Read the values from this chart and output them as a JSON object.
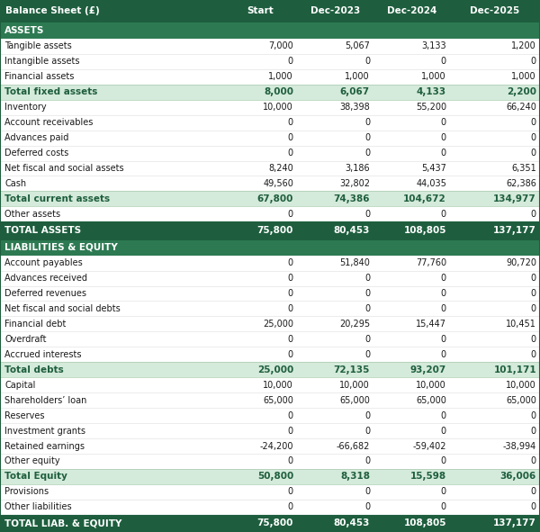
{
  "columns": [
    "Balance Sheet (£)",
    "Start",
    "Dec-2023",
    "Dec-2024",
    "Dec-2025"
  ],
  "header_bg": "#1e5e3e",
  "header_fg": "#ffffff",
  "section_bg": "#2d7a52",
  "section_fg": "#ffffff",
  "subtotal_bg": "#d4eada",
  "subtotal_fg": "#1e5e3e",
  "total_bg": "#1e5e3e",
  "total_fg": "#ffffff",
  "normal_bg": "#ffffff",
  "normal_fg": "#1a1a1a",
  "border_color": "#1e5e3e",
  "divider_color": "#cccccc",
  "rows": [
    {
      "label": "ASSETS",
      "values": [
        "",
        "",
        "",
        ""
      ],
      "type": "section"
    },
    {
      "label": "Tangible assets",
      "values": [
        "7,000",
        "5,067",
        "3,133",
        "1,200"
      ],
      "type": "normal"
    },
    {
      "label": "Intangible assets",
      "values": [
        "0",
        "0",
        "0",
        "0"
      ],
      "type": "normal"
    },
    {
      "label": "Financial assets",
      "values": [
        "1,000",
        "1,000",
        "1,000",
        "1,000"
      ],
      "type": "normal"
    },
    {
      "label": "Total fixed assets",
      "values": [
        "8,000",
        "6,067",
        "4,133",
        "2,200"
      ],
      "type": "subtotal"
    },
    {
      "label": "Inventory",
      "values": [
        "10,000",
        "38,398",
        "55,200",
        "66,240"
      ],
      "type": "normal"
    },
    {
      "label": "Account receivables",
      "values": [
        "0",
        "0",
        "0",
        "0"
      ],
      "type": "normal"
    },
    {
      "label": "Advances paid",
      "values": [
        "0",
        "0",
        "0",
        "0"
      ],
      "type": "normal"
    },
    {
      "label": "Deferred costs",
      "values": [
        "0",
        "0",
        "0",
        "0"
      ],
      "type": "normal"
    },
    {
      "label": "Net fiscal and social assets",
      "values": [
        "8,240",
        "3,186",
        "5,437",
        "6,351"
      ],
      "type": "normal"
    },
    {
      "label": "Cash",
      "values": [
        "49,560",
        "32,802",
        "44,035",
        "62,386"
      ],
      "type": "normal"
    },
    {
      "label": "Total current assets",
      "values": [
        "67,800",
        "74,386",
        "104,672",
        "134,977"
      ],
      "type": "subtotal"
    },
    {
      "label": "Other assets",
      "values": [
        "0",
        "0",
        "0",
        "0"
      ],
      "type": "normal"
    },
    {
      "label": "TOTAL ASSETS",
      "values": [
        "75,800",
        "80,453",
        "108,805",
        "137,177"
      ],
      "type": "total"
    },
    {
      "label": "LIABILITIES & EQUITY",
      "values": [
        "",
        "",
        "",
        ""
      ],
      "type": "section"
    },
    {
      "label": "Account payables",
      "values": [
        "0",
        "51,840",
        "77,760",
        "90,720"
      ],
      "type": "normal"
    },
    {
      "label": "Advances received",
      "values": [
        "0",
        "0",
        "0",
        "0"
      ],
      "type": "normal"
    },
    {
      "label": "Deferred revenues",
      "values": [
        "0",
        "0",
        "0",
        "0"
      ],
      "type": "normal"
    },
    {
      "label": "Net fiscal and social debts",
      "values": [
        "0",
        "0",
        "0",
        "0"
      ],
      "type": "normal"
    },
    {
      "label": "Financial debt",
      "values": [
        "25,000",
        "20,295",
        "15,447",
        "10,451"
      ],
      "type": "normal"
    },
    {
      "label": "Overdraft",
      "values": [
        "0",
        "0",
        "0",
        "0"
      ],
      "type": "normal"
    },
    {
      "label": "Accrued interests",
      "values": [
        "0",
        "0",
        "0",
        "0"
      ],
      "type": "normal"
    },
    {
      "label": "Total debts",
      "values": [
        "25,000",
        "72,135",
        "93,207",
        "101,171"
      ],
      "type": "subtotal"
    },
    {
      "label": "Capital",
      "values": [
        "10,000",
        "10,000",
        "10,000",
        "10,000"
      ],
      "type": "normal"
    },
    {
      "label": "Shareholders’ loan",
      "values": [
        "65,000",
        "65,000",
        "65,000",
        "65,000"
      ],
      "type": "normal"
    },
    {
      "label": "Reserves",
      "values": [
        "0",
        "0",
        "0",
        "0"
      ],
      "type": "normal"
    },
    {
      "label": "Investment grants",
      "values": [
        "0",
        "0",
        "0",
        "0"
      ],
      "type": "normal"
    },
    {
      "label": "Retained earnings",
      "values": [
        "-24,200",
        "-66,682",
        "-59,402",
        "-38,994"
      ],
      "type": "normal"
    },
    {
      "label": "Other equity",
      "values": [
        "0",
        "0",
        "0",
        "0"
      ],
      "type": "normal"
    },
    {
      "label": "Total Equity",
      "values": [
        "50,800",
        "8,318",
        "15,598",
        "36,006"
      ],
      "type": "subtotal"
    },
    {
      "label": "Provisions",
      "values": [
        "0",
        "0",
        "0",
        "0"
      ],
      "type": "normal"
    },
    {
      "label": "Other liabilities",
      "values": [
        "0",
        "0",
        "0",
        "0"
      ],
      "type": "normal"
    },
    {
      "label": "TOTAL LIAB. & EQUITY",
      "values": [
        "75,800",
        "80,453",
        "108,805",
        "137,177"
      ],
      "type": "total"
    }
  ]
}
